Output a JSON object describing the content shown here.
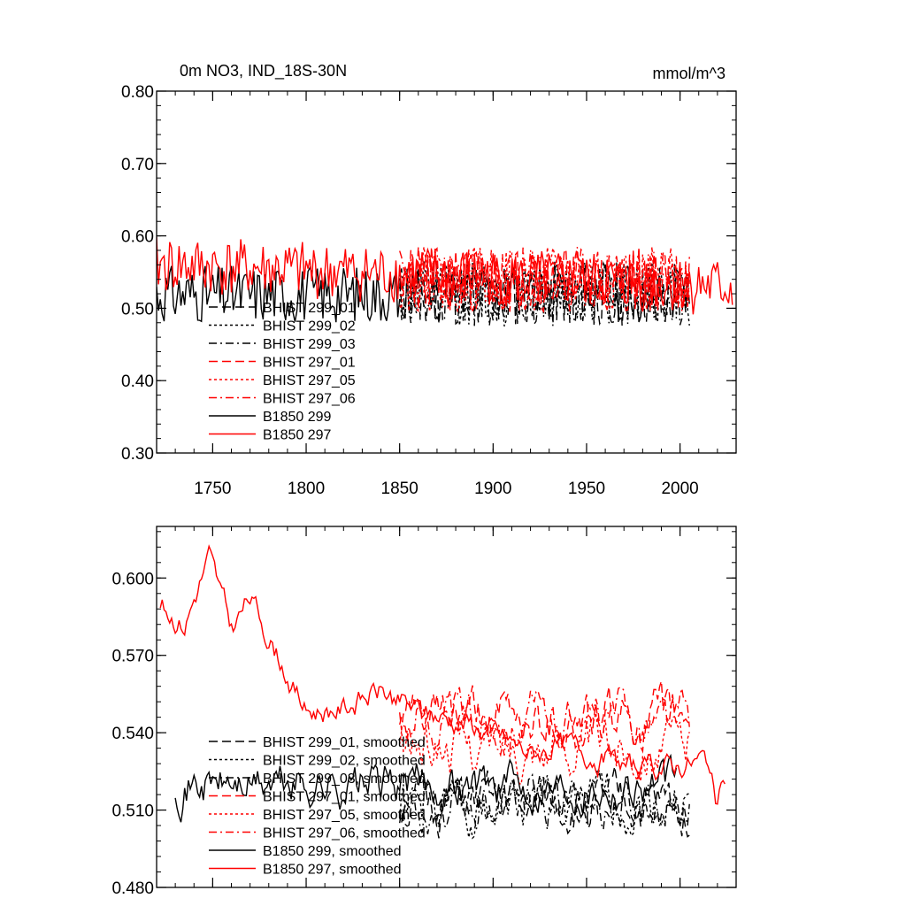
{
  "chart_data": [
    {
      "type": "line",
      "title": "0m NO3, IND_18S-30N",
      "units": "mmol/m^3",
      "xlim": [
        1720,
        2030
      ],
      "ylim": [
        0.3,
        0.8
      ],
      "xticks": [
        1750,
        1800,
        1850,
        1900,
        1950,
        2000
      ],
      "xtick_labels": [
        "1750",
        "1800",
        "1850",
        "1900",
        "1950",
        "2000"
      ],
      "yticks": [
        0.3,
        0.4,
        0.5,
        0.6,
        0.7,
        0.8
      ],
      "ytick_labels": [
        "0.30",
        "0.40",
        "0.50",
        "0.60",
        "0.70",
        "0.80"
      ],
      "grid": false,
      "legend_position": "lower-left",
      "series": [
        {
          "name": "BHIST 299_01",
          "color": "#000000",
          "dash": "long-dash",
          "start": 1850,
          "end": 2005,
          "mean": 0.52,
          "noise": 0.045,
          "seed": 11,
          "trend": 0.0
        },
        {
          "name": "BHIST 299_02",
          "color": "#000000",
          "dash": "dot",
          "start": 1850,
          "end": 2005,
          "mean": 0.52,
          "noise": 0.045,
          "seed": 12,
          "trend": 0.0
        },
        {
          "name": "BHIST 299_03",
          "color": "#000000",
          "dash": "dash-dot",
          "start": 1850,
          "end": 2005,
          "mean": 0.52,
          "noise": 0.045,
          "seed": 13,
          "trend": 0.0
        },
        {
          "name": "BHIST 297_01",
          "color": "#ff0000",
          "dash": "long-dash",
          "start": 1850,
          "end": 2005,
          "mean": 0.54,
          "noise": 0.045,
          "seed": 21,
          "trend": 0.0
        },
        {
          "name": "BHIST 297_05",
          "color": "#ff0000",
          "dash": "dot",
          "start": 1850,
          "end": 2005,
          "mean": 0.54,
          "noise": 0.045,
          "seed": 22,
          "trend": 0.0
        },
        {
          "name": "BHIST 297_06",
          "color": "#ff0000",
          "dash": "dash-dot",
          "start": 1850,
          "end": 2005,
          "mean": 0.54,
          "noise": 0.045,
          "seed": 23,
          "trend": 0.0
        },
        {
          "name": "B1850 299",
          "color": "#000000",
          "dash": "solid",
          "start": 1720,
          "end": 1850,
          "mean": 0.52,
          "noise": 0.04,
          "seed": 31,
          "trend": 0.0
        },
        {
          "name": "B1850 297",
          "color": "#ff0000",
          "dash": "solid",
          "start": 1720,
          "end": 2028,
          "mean": 0.56,
          "noise": 0.04,
          "seed": 41,
          "trend": -0.0001
        }
      ]
    },
    {
      "type": "line",
      "title": "",
      "units": "",
      "xlim": [
        1720,
        2030
      ],
      "ylim": [
        0.48,
        0.62
      ],
      "xticks": [
        1750,
        1800,
        1850,
        1900,
        1950,
        2000
      ],
      "xtick_labels": [],
      "yticks": [
        0.48,
        0.51,
        0.54,
        0.57,
        0.6
      ],
      "ytick_labels": [
        "0.480",
        "0.510",
        "0.540",
        "0.570",
        "0.600"
      ],
      "grid": false,
      "legend_position": "lower-left",
      "series": [
        {
          "name": "BHIST 299_01, smoothed",
          "color": "#000000",
          "dash": "long-dash",
          "start": 1850,
          "end": 2005,
          "mean": 0.512,
          "noise": 0.012,
          "seed": 51,
          "smooth": true
        },
        {
          "name": "BHIST 299_02, smoothed",
          "color": "#000000",
          "dash": "dot",
          "start": 1850,
          "end": 2005,
          "mean": 0.512,
          "noise": 0.012,
          "seed": 52,
          "smooth": true
        },
        {
          "name": "BHIST 299_03, smoothed",
          "color": "#000000",
          "dash": "dash-dot",
          "start": 1850,
          "end": 2005,
          "mean": 0.512,
          "noise": 0.012,
          "seed": 53,
          "smooth": true
        },
        {
          "name": "BHIST 297_01, smoothed",
          "color": "#ff0000",
          "dash": "long-dash",
          "start": 1850,
          "end": 2005,
          "mean": 0.545,
          "noise": 0.012,
          "seed": 61,
          "smooth": true
        },
        {
          "name": "BHIST 297_05, smoothed",
          "color": "#ff0000",
          "dash": "dot",
          "start": 1850,
          "end": 2005,
          "mean": 0.535,
          "noise": 0.012,
          "seed": 62,
          "smooth": true
        },
        {
          "name": "BHIST 297_06, smoothed",
          "color": "#ff0000",
          "dash": "dash-dot",
          "start": 1850,
          "end": 2005,
          "mean": 0.545,
          "noise": 0.012,
          "seed": 63,
          "smooth": true
        },
        {
          "name": "B1850 299, smoothed",
          "color": "#000000",
          "dash": "solid",
          "start": 1730,
          "end": 1998,
          "mean": 0.52,
          "noise": 0.01,
          "seed": 71,
          "smooth": true
        },
        {
          "name": "B1850 297, smoothed",
          "color": "#ff0000",
          "dash": "solid",
          "start": 1722,
          "end": 2024,
          "keyframes": [
            [
              1722,
              0.589
            ],
            [
              1735,
              0.582
            ],
            [
              1748,
              0.608
            ],
            [
              1760,
              0.58
            ],
            [
              1770,
              0.592
            ],
            [
              1785,
              0.57
            ],
            [
              1800,
              0.548
            ],
            [
              1820,
              0.55
            ],
            [
              1840,
              0.556
            ],
            [
              1860,
              0.548
            ],
            [
              1880,
              0.545
            ],
            [
              1900,
              0.54
            ],
            [
              1920,
              0.532
            ],
            [
              1940,
              0.535
            ],
            [
              1960,
              0.53
            ],
            [
              1980,
              0.525
            ],
            [
              2000,
              0.528
            ],
            [
              2015,
              0.53
            ],
            [
              2020,
              0.51
            ],
            [
              2024,
              0.521
            ]
          ],
          "noise": 0.006,
          "seed": 81,
          "smooth": true
        }
      ]
    }
  ]
}
